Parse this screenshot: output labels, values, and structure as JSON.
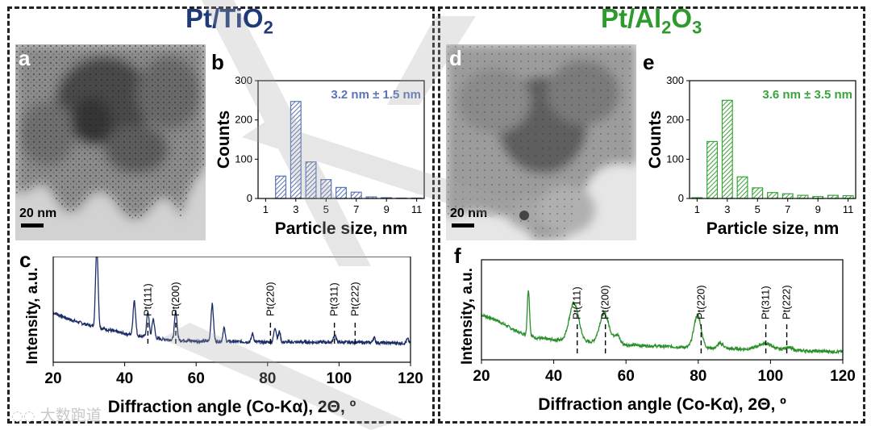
{
  "colors": {
    "tio2_accent": "#1f3a7a",
    "tio2_bar": "#5a74b5",
    "al2o3_accent": "#2e9a2e",
    "al2o3_bar": "#3aa43a",
    "xrd_tio2": "#1c2d66",
    "xrd_al2o3": "#2a8f2a",
    "frame": "#222222"
  },
  "left_panel": {
    "title_main": "Pt/TiO",
    "title_sub": "2",
    "label_a": "a",
    "label_b": "b",
    "label_c": "c",
    "scale_bar": "20 nm"
  },
  "right_panel": {
    "title_main": "Pt/Al",
    "title_sub1": "2",
    "title_mid": "O",
    "title_sub2": "3",
    "label_d": "d",
    "label_e": "e",
    "label_f": "f",
    "scale_bar": "20 nm"
  },
  "watermark": "大数跑道",
  "chart_data": [
    {
      "id": "b",
      "type": "bar",
      "title": "",
      "annotation": "3.2 nm ± 1.5 nm",
      "xlabel": "Particle size, nm",
      "ylabel": "Counts",
      "ylim": [
        0,
        300
      ],
      "yticks": [
        0,
        100,
        200,
        300
      ],
      "xlim": [
        0.5,
        11.5
      ],
      "xticks": [
        1,
        3,
        5,
        7,
        9,
        11
      ],
      "x": [
        2,
        3,
        4,
        5,
        6,
        7,
        8,
        9,
        10,
        11
      ],
      "values": [
        57,
        247,
        93,
        48,
        28,
        16,
        4,
        2,
        1,
        1
      ]
    },
    {
      "id": "e",
      "type": "bar",
      "title": "",
      "annotation": "3.6 nm ± 3.5 nm",
      "xlabel": "Particle size, nm",
      "ylabel": "Counts",
      "ylim": [
        0,
        300
      ],
      "yticks": [
        0,
        100,
        200,
        300
      ],
      "xlim": [
        0.5,
        11.5
      ],
      "xticks": [
        1,
        3,
        5,
        7,
        9,
        11
      ],
      "x": [
        1,
        2,
        3,
        4,
        5,
        6,
        7,
        8,
        9,
        10,
        11
      ],
      "values": [
        2,
        145,
        250,
        55,
        27,
        15,
        12,
        8,
        5,
        8,
        7
      ]
    },
    {
      "id": "c",
      "type": "line",
      "xlabel": "Diffraction angle (Co-Kα), 2Θ, º",
      "ylabel": "Intensity, a.u.",
      "xlim": [
        20,
        120
      ],
      "xticks": [
        20,
        40,
        60,
        80,
        100,
        120
      ],
      "ylim": [
        0,
        100
      ],
      "reference_lines": [
        {
          "label": "Pt(111)",
          "x": 46.5
        },
        {
          "label": "Pt(200)",
          "x": 54.3
        },
        {
          "label": "Pt(220)",
          "x": 80.8
        },
        {
          "label": "Pt(311)",
          "x": 98.7
        },
        {
          "label": "Pt(222)",
          "x": 104.5
        }
      ],
      "baseline": [
        [
          20,
          47
        ],
        [
          25,
          40
        ],
        [
          30,
          35
        ],
        [
          40,
          27
        ],
        [
          50,
          22
        ],
        [
          60,
          20
        ],
        [
          80,
          19
        ],
        [
          100,
          19
        ],
        [
          120,
          18
        ]
      ],
      "peaks": [
        [
          32.2,
          77,
          0.35
        ],
        [
          42.7,
          33,
          0.35
        ],
        [
          46.5,
          24,
          0.35
        ],
        [
          48.0,
          18,
          0.35
        ],
        [
          54.3,
          27,
          0.35
        ],
        [
          64.5,
          35,
          0.35
        ],
        [
          67.8,
          13,
          0.3
        ],
        [
          75.8,
          8,
          0.3
        ],
        [
          82.1,
          14,
          0.35
        ],
        [
          83.3,
          10,
          0.3
        ],
        [
          98.8,
          7,
          0.35
        ],
        [
          109.8,
          5,
          0.3
        ],
        [
          119.2,
          4,
          0.3
        ]
      ]
    },
    {
      "id": "f",
      "type": "line",
      "xlabel": "Diffraction angle (Co-Kα), 2Θ, º",
      "ylabel": "Intensity, a.u.",
      "xlim": [
        20,
        120
      ],
      "xticks": [
        20,
        40,
        60,
        80,
        100,
        120
      ],
      "ylim": [
        0,
        100
      ],
      "reference_lines": [
        {
          "label": "Pt(111)",
          "x": 46.5
        },
        {
          "label": "Pt(200)",
          "x": 54.3
        },
        {
          "label": "Pt(220)",
          "x": 80.8
        },
        {
          "label": "Pt(311)",
          "x": 98.7
        },
        {
          "label": "Pt(222)",
          "x": 104.5
        }
      ],
      "baseline": [
        [
          20,
          45
        ],
        [
          24,
          40
        ],
        [
          30,
          28
        ],
        [
          35,
          22
        ],
        [
          40,
          20
        ],
        [
          60,
          15
        ],
        [
          80,
          12
        ],
        [
          100,
          10
        ],
        [
          120,
          8
        ]
      ],
      "peaks": [
        [
          33.0,
          46,
          0.3
        ],
        [
          45.6,
          38,
          1.3
        ],
        [
          54.0,
          30,
          1.3
        ],
        [
          57.5,
          9,
          0.8
        ],
        [
          79.8,
          33,
          1.0
        ],
        [
          86.2,
          5,
          0.8
        ],
        [
          98.5,
          6,
          2.0
        ],
        [
          104.8,
          3,
          1.0
        ]
      ]
    }
  ]
}
